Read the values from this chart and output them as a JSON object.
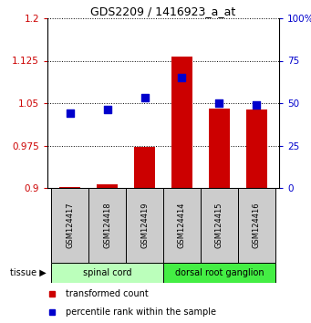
{
  "title": "GDS2209 / 1416923_a_at",
  "samples": [
    "GSM124417",
    "GSM124418",
    "GSM124419",
    "GSM124414",
    "GSM124415",
    "GSM124416"
  ],
  "bar_values": [
    0.902,
    0.907,
    0.972,
    1.132,
    1.04,
    1.038
  ],
  "scatter_values": [
    44,
    46,
    53,
    65,
    50,
    49
  ],
  "bar_color": "#cc0000",
  "scatter_color": "#0000cc",
  "ylim_left": [
    0.9,
    1.2
  ],
  "ylim_right": [
    0,
    100
  ],
  "yticks_left": [
    0.9,
    0.975,
    1.05,
    1.125,
    1.2
  ],
  "yticks_right": [
    0,
    25,
    50,
    75,
    100
  ],
  "ytick_labels_left": [
    "0.9",
    "0.975",
    "1.05",
    "1.125",
    "1.2"
  ],
  "ytick_labels_right": [
    "0",
    "25",
    "50",
    "75",
    "100%"
  ],
  "groups": [
    {
      "label": "spinal cord",
      "indices": [
        0,
        1,
        2
      ],
      "color": "#bbffbb"
    },
    {
      "label": "dorsal root ganglion",
      "indices": [
        3,
        4,
        5
      ],
      "color": "#44ee44"
    }
  ],
  "tissue_label": "tissue",
  "bar_width": 0.55,
  "scatter_marker": "s",
  "scatter_size": 28,
  "legend_labels": [
    "transformed count",
    "percentile rank within the sample"
  ]
}
